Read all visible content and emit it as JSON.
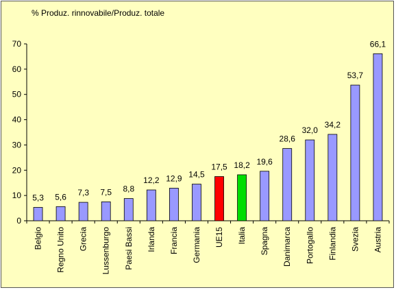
{
  "chart_data": {
    "type": "bar",
    "ylabel": "% Produz. rinnovabile/Produz. totale",
    "xlabel": "",
    "ylim": [
      0,
      70
    ],
    "yticks": [
      0,
      10,
      20,
      30,
      40,
      50,
      60,
      70
    ],
    "grid": false,
    "legend": "none",
    "categories": [
      "Belgio",
      "Regno Unito",
      "Grecia",
      "Lussenburgo",
      "Paesi Bassi",
      "Irlanda",
      "Francia",
      "Germania",
      "UE15",
      "Italia",
      "Spagna",
      "Danimarca",
      "Portogallo",
      "Finlandia",
      "Svezia",
      "Austria"
    ],
    "values": [
      5.3,
      5.6,
      7.3,
      7.5,
      8.8,
      12.2,
      12.9,
      14.5,
      17.5,
      18.2,
      19.6,
      28.6,
      32.0,
      34.2,
      53.7,
      66.1
    ],
    "value_labels": [
      "5,3",
      "5,6",
      "7,3",
      "7,5",
      "8,8",
      "12,2",
      "12,9",
      "14,5",
      "17,5",
      "18,2",
      "19,6",
      "28,6",
      "32,0",
      "34,2",
      "53,7",
      "66,1"
    ],
    "colors": {
      "default": "#9999ff",
      "highlight": {
        "UE15": "#ff0000",
        "Italia": "#00dd00"
      },
      "background": "#ffffc0"
    }
  }
}
